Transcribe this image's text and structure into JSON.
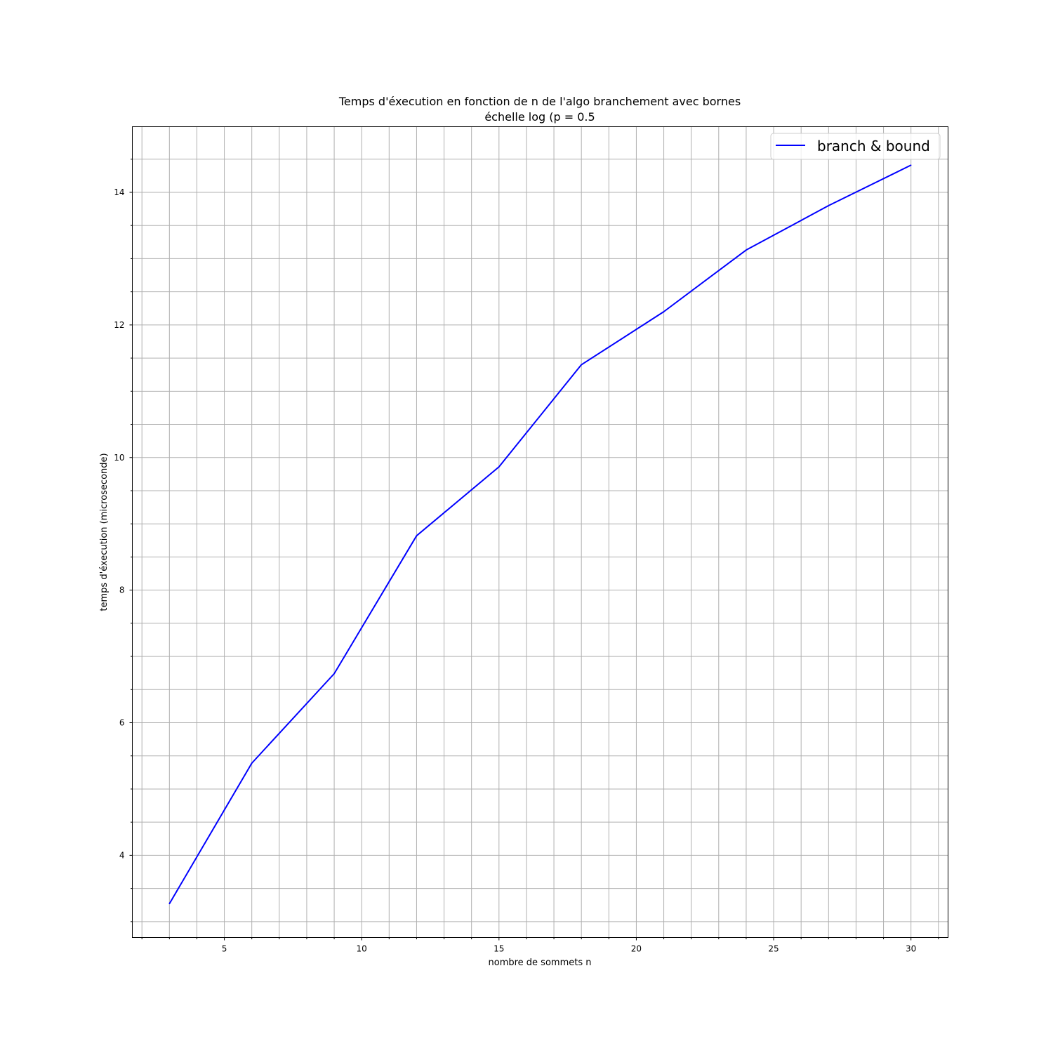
{
  "chart_data": {
    "type": "line",
    "title": "Temps d'éxecution en fonction de n de l'algo branchement avec bornes",
    "subtitle": "échelle log (p = 0.5",
    "xlabel": "nombre de sommets n",
    "ylabel": "temps d'éxecution (microseconde)",
    "xlim": [
      1.65,
      31.35
    ],
    "ylim": [
      2.76,
      14.99
    ],
    "x_ticks": [
      5,
      10,
      15,
      20,
      25,
      30
    ],
    "x_minor_step": 1,
    "y_ticks": [
      4,
      6,
      8,
      10,
      12,
      14
    ],
    "y_minor_step": 0.5,
    "grid": true,
    "legend_position": "top-right",
    "series": [
      {
        "name": "branch & bound",
        "color": "#0000ff",
        "x": [
          3,
          6,
          9,
          12,
          15,
          18,
          21,
          24,
          27,
          30
        ],
        "y": [
          3.27,
          5.39,
          6.74,
          8.82,
          9.86,
          11.4,
          12.2,
          13.13,
          13.8,
          14.41
        ]
      }
    ]
  }
}
